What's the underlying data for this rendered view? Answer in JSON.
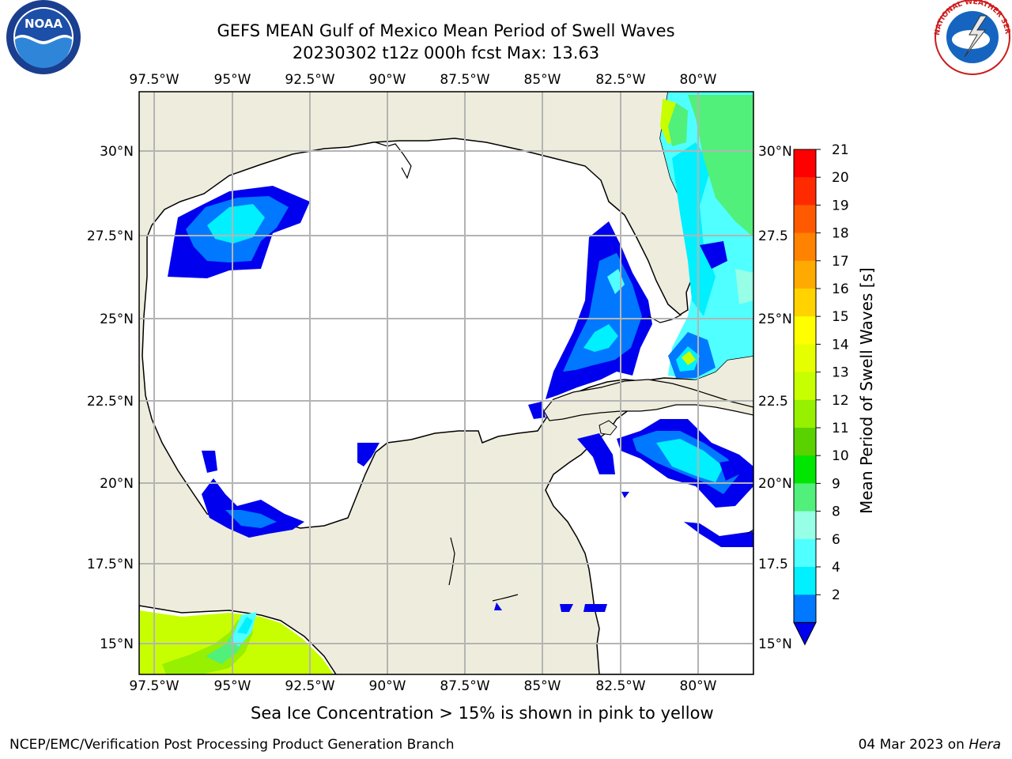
{
  "title": {
    "line1": "GEFS MEAN Gulf of Mexico Mean Period of Swell Waves",
    "line2": "20230302 t12z 000h fcst   Max: 13.63"
  },
  "logos": {
    "left": {
      "name": "noaa-logo",
      "text": "NOAA"
    },
    "right": {
      "name": "nws-logo",
      "text": "NATIONAL WEATHER SERVICE"
    }
  },
  "map": {
    "lon_labels": [
      "97.5°W",
      "95°W",
      "92.5°W",
      "90°W",
      "87.5°W",
      "85°W",
      "82.5°W",
      "80°W"
    ],
    "lat_labels_left": [
      "30°N",
      "27.5°N",
      "25°N",
      "22.5°N",
      "20°N",
      "17.5°N",
      "15°N"
    ],
    "lat_labels_right": [
      "30°N",
      "27.5",
      "25°N",
      "22.5",
      "20°N",
      "17.5",
      "15°N"
    ],
    "colors": {
      "land": "#eeecdc",
      "ocean": "#ffffff",
      "grid": "#b4b4b4",
      "coast": "#000000"
    }
  },
  "colorbar": {
    "title": "Mean Period of Swell Waves [s]",
    "labels": [
      "21",
      "20",
      "19",
      "18",
      "17",
      "16",
      "15",
      "14",
      "13",
      "12",
      "11",
      "10",
      "9",
      "8",
      "6",
      "4",
      "2"
    ],
    "colors": [
      "#ff0000",
      "#ff2a00",
      "#ff5a00",
      "#ff8200",
      "#ffaa00",
      "#ffd200",
      "#ffff00",
      "#e6ff00",
      "#c8ff00",
      "#96f000",
      "#5ad200",
      "#00e600",
      "#50f07a",
      "#96ffe6",
      "#50ffff",
      "#00f0ff",
      "#0078ff",
      "#0000ee"
    ]
  },
  "footer": {
    "note": "Sea Ice Concentration > 15% is shown in pink to yellow",
    "left": "NCEP/EMC/Verification Post Processing Product Generation Branch",
    "right_date": "04 Mar 2023 on",
    "right_host": "Hera"
  }
}
